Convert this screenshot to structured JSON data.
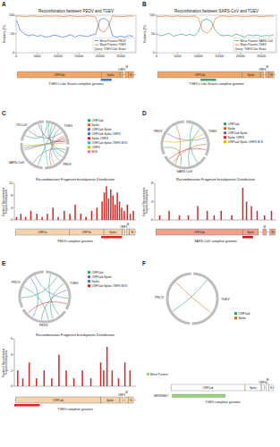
{
  "panel_labels": [
    "A",
    "B",
    "C",
    "D",
    "E",
    "F"
  ],
  "chart_data": [
    {
      "type": "line",
      "title": "Recombination between PEDV and TGEV",
      "annotation": "Query: TGEV-Like Strain",
      "y_label": "Similarity (%)",
      "x": [
        0,
        1000,
        2000,
        3000,
        4000,
        5000,
        6000,
        7000,
        8000,
        9000,
        10000,
        11000,
        12000,
        13000,
        14000,
        15000,
        16000,
        17000,
        18000,
        19000,
        20000,
        21000,
        22000,
        23000,
        24000,
        25000,
        26000,
        27000,
        28000
      ],
      "series": [
        {
          "name": "Minor Parents PEDV",
          "color": "#3a7dc9",
          "values": [
            88,
            60,
            50,
            45,
            48,
            44,
            46,
            42,
            43,
            47,
            45,
            41,
            44,
            48,
            42,
            46,
            45,
            43,
            47,
            50,
            88,
            92,
            85,
            45,
            42,
            44,
            42,
            46,
            43
          ]
        },
        {
          "name": "Major Parents TGEV",
          "color": "#e8772e",
          "values": [
            97,
            98,
            96,
            97,
            98,
            97,
            96,
            98,
            97,
            97,
            98,
            96,
            97,
            98,
            97,
            96,
            97,
            98,
            97,
            95,
            60,
            55,
            70,
            98,
            97,
            96,
            97,
            98,
            97
          ]
        }
      ],
      "xlim": [
        0,
        28600
      ],
      "xticks": [
        0,
        5000,
        10000,
        15000,
        20000,
        25000
      ],
      "ylim": [
        0,
        100
      ],
      "yticks": [
        0,
        50,
        100
      ],
      "legend": "lower right",
      "grid": false
    },
    {
      "type": "line",
      "title": "Recombination between SARS-CoV and TGEV",
      "annotation": "Query: TGEV-Like Strain",
      "y_label": "Similarity (%)",
      "x": [
        0,
        1000,
        2000,
        3000,
        4000,
        5000,
        6000,
        7000,
        8000,
        9000,
        10000,
        11000,
        12000,
        13000,
        14000,
        15000,
        16000,
        17000,
        18000,
        19000,
        20000,
        21000,
        22000,
        23000,
        24000,
        25000,
        26000,
        27000,
        28000
      ],
      "series": [
        {
          "name": "Minor Parents SARS-CoV",
          "color": "#3aa876",
          "values": [
            50,
            45,
            48,
            52,
            44,
            47,
            50,
            46,
            49,
            45,
            55,
            86,
            90,
            84,
            60,
            48,
            45,
            47,
            44,
            50,
            46,
            42,
            48,
            45,
            47,
            44,
            46,
            45,
            48
          ]
        },
        {
          "name": "Major Parents TGEV",
          "color": "#e8772e",
          "values": [
            97,
            96,
            98,
            97,
            96,
            98,
            97,
            96,
            97,
            98,
            92,
            58,
            52,
            62,
            90,
            97,
            98,
            96,
            97,
            98,
            97,
            96,
            97,
            98,
            97,
            96,
            97,
            98,
            97
          ]
        }
      ],
      "xlim": [
        0,
        28600
      ],
      "xticks": [
        0,
        5000,
        10000,
        15000,
        20000,
        25000
      ],
      "ylim": [
        0,
        100
      ],
      "yticks": [
        0,
        50,
        100
      ],
      "legend": "lower right",
      "grid": false
    },
    {
      "type": "bar",
      "title": "Recombination Fragment breakpoints Distribution",
      "y_label": "Number of Recombination Fragment Breakpoints",
      "color": "#d62728",
      "x": [
        500,
        1500,
        2600,
        3800,
        5200,
        6400,
        7600,
        8900,
        10100,
        11500,
        12800,
        14000,
        15300,
        16500,
        17800,
        19000,
        20200,
        20700,
        21200,
        21700,
        22200,
        22700,
        23200,
        23700,
        24200,
        24700,
        25300,
        26000,
        26700,
        27400
      ],
      "values": [
        1,
        2,
        1,
        3,
        2,
        1,
        2,
        4,
        1,
        3,
        2,
        5,
        2,
        1,
        3,
        4,
        6,
        9,
        11,
        7,
        10,
        8,
        5,
        9,
        6,
        4,
        3,
        5,
        2,
        3
      ],
      "xlim": [
        0,
        28000
      ],
      "ylim": [
        0,
        12
      ],
      "yticks": [
        0,
        4,
        8,
        12
      ],
      "tick_labels": "y"
    },
    {
      "type": "bar",
      "title": "Recombination Fragment breakpoints Distribution",
      "y_label": "Number of Recombination Fragment Breakpoints",
      "color": "#d62728",
      "x": [
        1200,
        3500,
        6000,
        8200,
        10500,
        12800,
        14500,
        16200,
        18800,
        21500,
        22400,
        23600,
        25000,
        26800,
        28500
      ],
      "values": [
        1,
        2,
        1,
        1,
        3,
        2,
        1,
        2,
        1,
        7,
        4,
        3,
        2,
        1,
        2
      ],
      "xlim": [
        0,
        29700
      ],
      "ylim": [
        0,
        8
      ],
      "yticks": [
        0,
        4,
        8
      ],
      "tick_labels": "y"
    },
    {
      "type": "bar",
      "title": "Recombination Fragment breakpoints Distribution",
      "y_label": "Number of Recombination Fragment Breakpoints",
      "color": "#d62728",
      "x": [
        800,
        2000,
        3500,
        5200,
        7000,
        8800,
        10500,
        12200,
        14000,
        16000,
        18000,
        20300,
        21000,
        21800,
        23000,
        24500,
        26000,
        27200
      ],
      "values": [
        2,
        1,
        3,
        1,
        2,
        1,
        4,
        2,
        1,
        2,
        1,
        3,
        2,
        5,
        2,
        1,
        3,
        2
      ],
      "xlim": [
        0,
        28600
      ],
      "ylim": [
        0,
        6
      ],
      "yticks": [
        0,
        2,
        4,
        6
      ],
      "tick_labels": "y"
    }
  ],
  "genome_maps": [
    {
      "title": "TGEV's Like Strains complete genome",
      "length": 28600,
      "color": "#f0a86a",
      "highlight_color": "#3a7dc9",
      "genes": [
        {
          "name": "ORF1ab",
          "start": 300,
          "end": 20350
        },
        {
          "name": "Spike",
          "start": 20350,
          "end": 24700
        },
        {
          "name": "ORF3",
          "start": 24800,
          "end": 25600
        },
        {
          "name": "M",
          "start": 26000,
          "end": 26800
        },
        {
          "name": "N",
          "start": 26800,
          "end": 28000
        }
      ],
      "highlights": [
        {
          "start": 20200,
          "end": 22800
        }
      ]
    },
    {
      "title": "TGEV's Like Strains complete genome",
      "length": 28600,
      "color": "#f0a86a",
      "highlight_color": "#3aa876",
      "genes": [
        {
          "name": "ORF1ab",
          "start": 300,
          "end": 20350
        },
        {
          "name": "Spike",
          "start": 20350,
          "end": 24700
        },
        {
          "name": "ORF3",
          "start": 24800,
          "end": 25600
        },
        {
          "name": "M",
          "start": 26000,
          "end": 26800
        },
        {
          "name": "N",
          "start": 26800,
          "end": 28000
        }
      ],
      "highlights": [
        {
          "start": 10500,
          "end": 14200
        }
      ]
    },
    {
      "title": "PEDV complete genome",
      "length": 28000,
      "color": "#f6d2ad",
      "highlight_color": "#d62728",
      "genes": [
        {
          "name": "ORF1a",
          "start": 300,
          "end": 12600
        },
        {
          "name": "ORF1b",
          "start": 12600,
          "end": 20600
        },
        {
          "name": "Spike",
          "start": 20600,
          "end": 24800
        },
        {
          "name": "ORF3",
          "start": 24800,
          "end": 25500
        },
        {
          "name": "M",
          "start": 25800,
          "end": 26500
        },
        {
          "name": "N",
          "start": 26500,
          "end": 27800
        }
      ],
      "highlights": [
        {
          "start": 20000,
          "end": 24800
        }
      ]
    },
    {
      "title": "SARS-CoV complete genome",
      "length": 29700,
      "color": "#f3a08f",
      "highlight_color": "#b22222",
      "genes": [
        {
          "name": "ORF1ab",
          "start": 250,
          "end": 21500
        },
        {
          "name": "Spike",
          "start": 21500,
          "end": 25300
        },
        {
          "name": "M",
          "start": 26400,
          "end": 27200
        },
        {
          "name": "N",
          "start": 28100,
          "end": 29400
        }
      ],
      "highlights": [
        {
          "start": 21400,
          "end": 24000
        }
      ]
    },
    {
      "title": "TGEV complete genome",
      "length": 28600,
      "color": "#f6d2ad",
      "highlight_color": "#d62728",
      "genes": [
        {
          "name": "ORF1ab",
          "start": 300,
          "end": 20350
        },
        {
          "name": "Spike",
          "start": 20350,
          "end": 24700
        },
        {
          "name": "ORF3",
          "start": 24800,
          "end": 25600
        },
        {
          "name": "M",
          "start": 26000,
          "end": 26800
        },
        {
          "name": "N",
          "start": 26800,
          "end": 28000
        }
      ],
      "highlights": [
        {
          "start": 0,
          "end": 6000
        }
      ]
    },
    {
      "title": "TGEV complete genome",
      "length": 28600,
      "color": "#ffffff",
      "highlight_color": "#9ccf7a",
      "legend": "Minor Parents",
      "genes": [
        {
          "name": "ORF1ab",
          "start": 300,
          "end": 20350
        },
        {
          "name": "Spike",
          "start": 20350,
          "end": 24700
        },
        {
          "name": "ORF3a",
          "start": 24800,
          "end": 25600
        },
        {
          "name": "M",
          "start": 26000,
          "end": 26800
        },
        {
          "name": "N",
          "start": 26800,
          "end": 28000
        }
      ],
      "highlights": [],
      "track": {
        "name": "MF596867",
        "start": 600,
        "end": 15000
      }
    }
  ],
  "circos": [
    {
      "segments": [
        {
          "name": "TGEV",
          "size": 28.6
        },
        {
          "name": "PEDV",
          "size": 28.0
        },
        {
          "name": "SARS-CoV",
          "size": 29.7
        },
        {
          "name": "PDCoV",
          "size": 25.4
        }
      ],
      "legend": [
        {
          "name": "ORF1ab",
          "color": "#2e9d6e"
        },
        {
          "name": "Spike",
          "color": "#d2691e"
        },
        {
          "name": "ORF1ab Spike",
          "color": "#7b5ea7"
        },
        {
          "name": "ORF1ab Spike ORF3",
          "color": "#3a7dc9"
        },
        {
          "name": "Spike ORF3",
          "color": "#d62728"
        },
        {
          "name": "ORF1ab Spike ORF3 M N",
          "color": "#17becf"
        },
        {
          "name": "ORF3",
          "color": "#bcbd22"
        },
        {
          "name": "M N",
          "color": "#e377c2"
        }
      ],
      "links": [
        [
          0,
          0,
          0.1,
          1,
          0.2
        ],
        [
          0,
          0,
          0.2,
          1,
          0.35
        ],
        [
          0,
          0,
          0.3,
          2,
          0.15
        ],
        [
          0,
          0,
          0.45,
          1,
          0.5
        ],
        [
          1,
          0,
          0.75,
          1,
          0.8
        ],
        [
          1,
          0,
          0.8,
          2,
          0.78
        ],
        [
          2,
          0,
          0.6,
          3,
          0.4
        ],
        [
          3,
          0,
          0.85,
          2,
          0.85
        ],
        [
          4,
          0,
          0.9,
          3,
          0.82
        ],
        [
          0,
          1,
          0.1,
          2,
          0.3
        ],
        [
          0,
          3,
          0.2,
          0,
          0.05
        ],
        [
          5,
          1,
          0.9,
          3,
          0.9
        ],
        [
          6,
          2,
          0.92,
          0,
          0.95
        ],
        [
          7,
          1,
          0.7,
          0,
          0.7
        ]
      ]
    },
    {
      "segments": [
        {
          "name": "TGEV",
          "size": 28.6
        },
        {
          "name": "SARS-CoV",
          "size": 29.7
        },
        {
          "name": "PEDV",
          "size": 28.0
        }
      ],
      "legend": [
        {
          "name": "ORF1ab",
          "color": "#2e9d6e"
        },
        {
          "name": "Spike",
          "color": "#d2691e"
        },
        {
          "name": "ORF1ab Spike",
          "color": "#7b5ea7"
        },
        {
          "name": "Spike ORF3",
          "color": "#d62728"
        },
        {
          "name": "ORF1ab Spike ORF3 M N",
          "color": "#e0b000"
        }
      ],
      "links": [
        [
          0,
          0,
          0.15,
          1,
          0.2
        ],
        [
          0,
          0,
          0.35,
          1,
          0.4
        ],
        [
          1,
          0,
          0.75,
          1,
          0.78
        ],
        [
          2,
          0,
          0.6,
          2,
          0.5
        ],
        [
          3,
          0,
          0.88,
          1,
          0.9
        ],
        [
          4,
          0,
          0.5,
          2,
          0.3
        ],
        [
          0,
          1,
          0.6,
          2,
          0.15
        ],
        [
          1,
          2,
          0.8,
          1,
          0.72
        ]
      ]
    },
    {
      "segments": [
        {
          "name": "TGEV",
          "size": 28.6
        },
        {
          "name": "PEDV",
          "size": 28.0
        },
        {
          "name": "PRCV",
          "size": 27.5
        }
      ],
      "legend": [
        {
          "name": "ORF1ab",
          "color": "#2e9d6e"
        },
        {
          "name": "ORF1ab Spike",
          "color": "#7b5ea7"
        },
        {
          "name": "Spike",
          "color": "#3a7dc9"
        },
        {
          "name": "ORF1ab Spike ORF3 M N",
          "color": "#d62728"
        }
      ],
      "links": [
        [
          0,
          0,
          0.1,
          1,
          0.15
        ],
        [
          0,
          0,
          0.25,
          2,
          0.2
        ],
        [
          0,
          1,
          0.4,
          2,
          0.45
        ],
        [
          1,
          0,
          0.6,
          1,
          0.55
        ],
        [
          2,
          0,
          0.78,
          2,
          0.8
        ],
        [
          3,
          0,
          0.9,
          1,
          0.88
        ],
        [
          0,
          0,
          0.45,
          1,
          0.3
        ],
        [
          2,
          1,
          0.75,
          2,
          0.7
        ]
      ]
    },
    {
      "segments": [
        {
          "name": "TGEV",
          "size": 28.6
        },
        {
          "name": "PRCV",
          "size": 27.5
        }
      ],
      "legend": [
        {
          "name": "ORF1ab",
          "color": "#2e9d6e"
        },
        {
          "name": "Spike",
          "color": "#d2691e"
        }
      ],
      "links": [
        [
          0,
          0,
          0.2,
          1,
          0.3
        ],
        [
          1,
          0,
          0.7,
          1,
          0.75
        ]
      ]
    }
  ]
}
